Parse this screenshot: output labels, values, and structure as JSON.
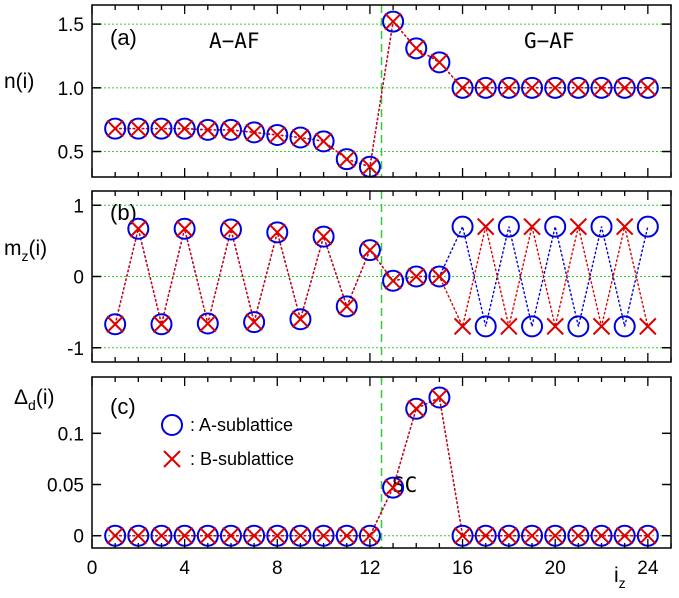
{
  "chart_data": {
    "type": "scatter",
    "colors": {
      "A": "#0000dd",
      "B": "#dd0000",
      "grid": "#33cc33",
      "axis": "#000000"
    },
    "x_axis": {
      "range": [
        0,
        25
      ],
      "ticks": [
        0,
        4,
        8,
        12,
        16,
        20,
        24
      ],
      "tick_labels": [
        "0",
        "4",
        "8",
        "12",
        "16",
        "20",
        "24"
      ],
      "label_main": "i",
      "label_sub": "z"
    },
    "interface_x": 12.5,
    "legend": {
      "A": ": A-sublattice",
      "B": ": B-sublattice"
    },
    "panels": [
      {
        "id": "a",
        "letter": "(a)",
        "ylabel": "n(i)",
        "ylim": [
          0.3,
          1.65
        ],
        "yticks": [
          0.5,
          1.0,
          1.5
        ],
        "ytick_labels": [
          "0.5",
          "1.0",
          "1.5"
        ],
        "grid_y": [
          0.5,
          1.0,
          1.5
        ],
        "annotations": [
          "A−AF",
          "G−AF"
        ],
        "series": [
          {
            "sublattice": "A",
            "x": [
              1,
              2,
              3,
              4,
              5,
              6,
              7,
              8,
              9,
              10,
              11,
              12,
              13,
              14,
              15,
              16,
              17,
              18,
              19,
              20,
              21,
              22,
              23,
              24
            ],
            "y": [
              0.68,
              0.68,
              0.68,
              0.68,
              0.67,
              0.67,
              0.65,
              0.63,
              0.61,
              0.58,
              0.44,
              0.38,
              1.52,
              1.31,
              1.2,
              1.0,
              1.0,
              1.0,
              1.0,
              1.0,
              1.0,
              1.0,
              1.0,
              1.0
            ]
          },
          {
            "sublattice": "B",
            "x": [
              1,
              2,
              3,
              4,
              5,
              6,
              7,
              8,
              9,
              10,
              11,
              12,
              13,
              14,
              15,
              16,
              17,
              18,
              19,
              20,
              21,
              22,
              23,
              24
            ],
            "y": [
              0.68,
              0.68,
              0.68,
              0.68,
              0.67,
              0.67,
              0.65,
              0.63,
              0.61,
              0.58,
              0.44,
              0.38,
              1.52,
              1.31,
              1.2,
              1.0,
              1.0,
              1.0,
              1.0,
              1.0,
              1.0,
              1.0,
              1.0,
              1.0
            ]
          }
        ]
      },
      {
        "id": "b",
        "letter": "(b)",
        "ylabel_main": "m",
        "ylabel_sub": "z",
        "ylabel_tail": "(i)",
        "ylim": [
          -1.2,
          1.2
        ],
        "yticks": [
          -1,
          0,
          1
        ],
        "ytick_labels": [
          "-1",
          "0",
          "1"
        ],
        "grid_y": [
          -1,
          0,
          1
        ],
        "series": [
          {
            "sublattice": "A",
            "x": [
              1,
              2,
              3,
              4,
              5,
              6,
              7,
              8,
              9,
              10,
              11,
              12,
              13,
              14,
              15,
              16,
              17,
              18,
              19,
              20,
              21,
              22,
              23,
              24
            ],
            "y": [
              -0.67,
              0.67,
              -0.67,
              0.67,
              -0.66,
              0.66,
              -0.64,
              0.62,
              -0.6,
              0.56,
              -0.42,
              0.37,
              -0.06,
              0.0,
              0.0,
              0.7,
              -0.7,
              0.7,
              -0.7,
              0.7,
              -0.7,
              0.7,
              -0.7,
              0.7
            ]
          },
          {
            "sublattice": "B",
            "x": [
              1,
              2,
              3,
              4,
              5,
              6,
              7,
              8,
              9,
              10,
              11,
              12,
              13,
              14,
              15,
              16,
              17,
              18,
              19,
              20,
              21,
              22,
              23,
              24
            ],
            "y": [
              -0.67,
              0.67,
              -0.67,
              0.67,
              -0.66,
              0.66,
              -0.64,
              0.62,
              -0.6,
              0.56,
              -0.42,
              0.37,
              -0.06,
              0.0,
              0.0,
              -0.7,
              0.7,
              -0.7,
              0.7,
              -0.7,
              0.7,
              -0.7,
              0.7,
              -0.7
            ]
          }
        ]
      },
      {
        "id": "c",
        "letter": "(c)",
        "ylabel_main": "Δ",
        "ylabel_sub": "d",
        "ylabel_tail": "(i)",
        "ylim": [
          -0.012,
          0.155
        ],
        "yticks": [
          0,
          0.05,
          0.1
        ],
        "ytick_labels": [
          "0",
          "0.05",
          "0.1"
        ],
        "grid_y": [
          0
        ],
        "annotations": [
          "SC"
        ],
        "series": [
          {
            "sublattice": "A",
            "x": [
              1,
              2,
              3,
              4,
              5,
              6,
              7,
              8,
              9,
              10,
              11,
              12,
              13,
              14,
              15,
              16,
              17,
              18,
              19,
              20,
              21,
              22,
              23,
              24
            ],
            "y": [
              0,
              0,
              0,
              0,
              0,
              0,
              0,
              0,
              0,
              0,
              0,
              0,
              0.047,
              0.124,
              0.135,
              0,
              0,
              0,
              0,
              0,
              0,
              0,
              0,
              0
            ]
          },
          {
            "sublattice": "B",
            "x": [
              1,
              2,
              3,
              4,
              5,
              6,
              7,
              8,
              9,
              10,
              11,
              12,
              13,
              14,
              15,
              16,
              17,
              18,
              19,
              20,
              21,
              22,
              23,
              24
            ],
            "y": [
              0,
              0,
              0,
              0,
              0,
              0,
              0,
              0,
              0,
              0,
              0,
              0,
              0.047,
              0.124,
              0.135,
              0,
              0,
              0,
              0,
              0,
              0,
              0,
              0,
              0
            ]
          }
        ]
      }
    ]
  }
}
